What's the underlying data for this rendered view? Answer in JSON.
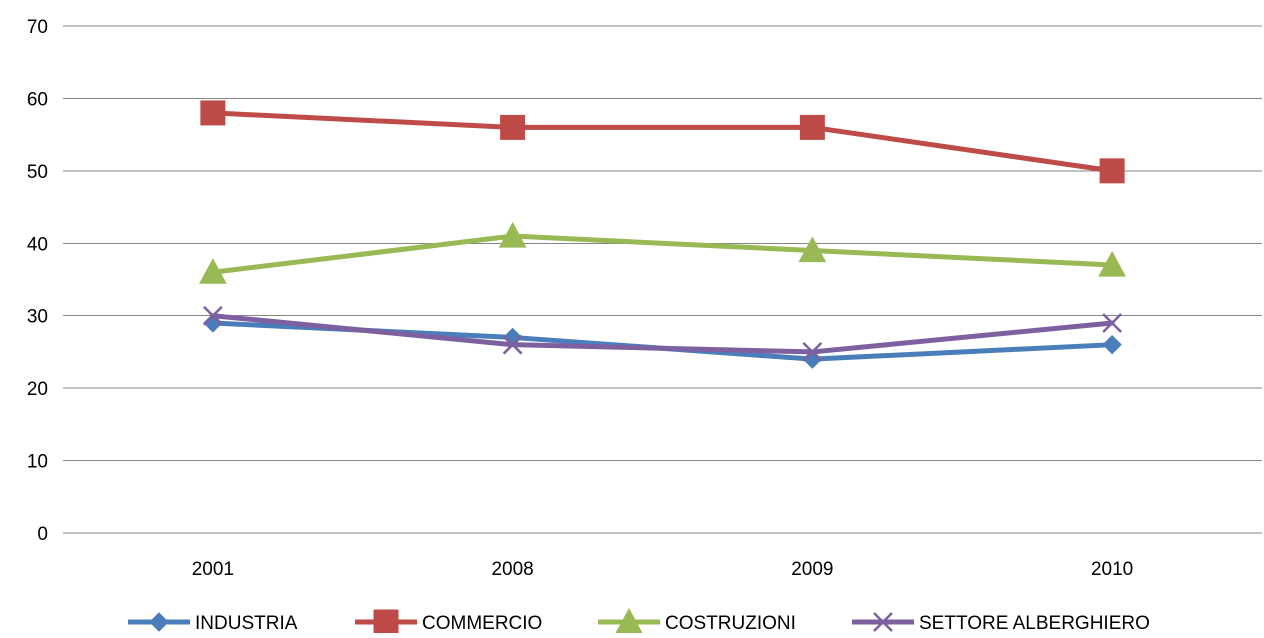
{
  "chart_data": {
    "type": "line",
    "title": "",
    "xlabel": "",
    "ylabel": "",
    "categories": [
      "2001",
      "2008",
      "2009",
      "2010"
    ],
    "ylim": [
      0,
      70
    ],
    "yticks": [
      0,
      10,
      20,
      30,
      40,
      50,
      60,
      70
    ],
    "grid": true,
    "legend_position": "bottom",
    "series": [
      {
        "name": "INDUSTRIA",
        "values": [
          29,
          27,
          24,
          26
        ],
        "color": "#4a7ebb",
        "marker": "diamond"
      },
      {
        "name": "COMMERCIO",
        "values": [
          58,
          56,
          56,
          50
        ],
        "color": "#be4b48",
        "marker": "square"
      },
      {
        "name": "COSTRUZIONI",
        "values": [
          36,
          41,
          39,
          37
        ],
        "color": "#98b954",
        "marker": "triangle"
      },
      {
        "name": "SETTORE ALBERGHIERO",
        "values": [
          30,
          26,
          25,
          29
        ],
        "color": "#7d60a0",
        "marker": "x"
      }
    ]
  }
}
